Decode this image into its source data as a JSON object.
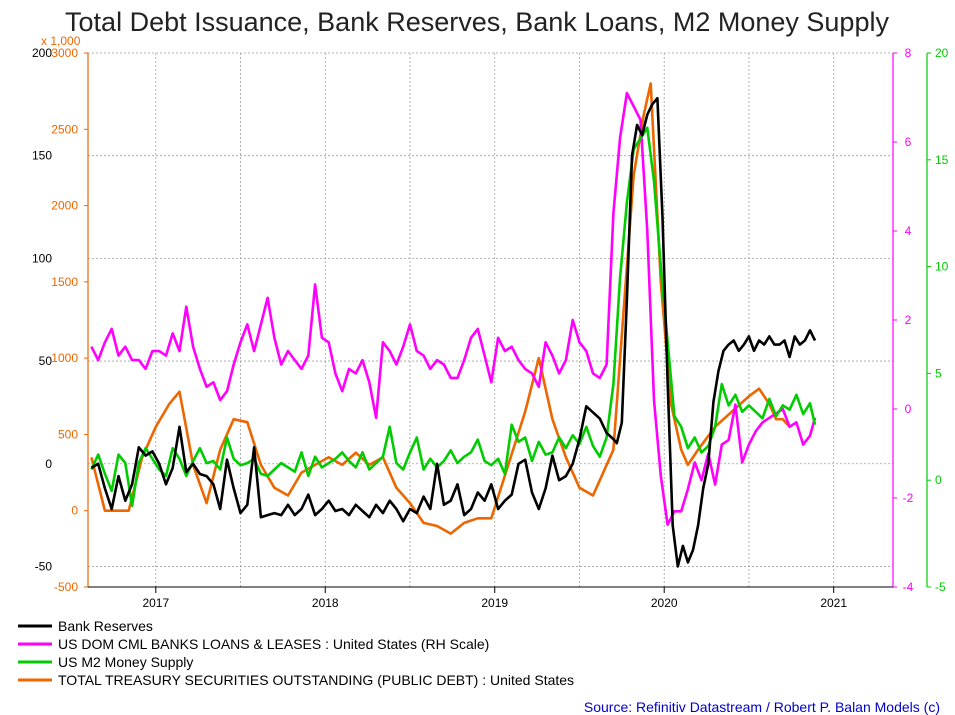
{
  "chart_data": {
    "type": "line",
    "title": "Total Debt Issuance, Bank Reserves, Bank Loans, M2 Money Supply",
    "x_tick_labels": [
      "2017",
      "2018",
      "2019",
      "2020",
      "2021"
    ],
    "x_tick_years": [
      2017,
      2018,
      2019,
      2020,
      2021
    ],
    "xlim": [
      2016.6,
      2021.35
    ],
    "grid": true,
    "axes": {
      "left_black": {
        "ticks": [
          -50,
          0,
          50,
          100,
          150,
          200
        ],
        "ylim": [
          -60,
          200
        ],
        "color": "#000000"
      },
      "left_orange": {
        "multiplier_label": "x 1,000",
        "ticks": [
          -500,
          0,
          500,
          1000,
          1500,
          2000,
          2500,
          3000
        ],
        "ylim": [
          -500,
          3000
        ],
        "color": "#ee6600"
      },
      "right_magenta": {
        "ticks": [
          -4,
          -2,
          0,
          2,
          4,
          6,
          8
        ],
        "ylim": [
          -4,
          8
        ],
        "color": "#ff00ff"
      },
      "right_green": {
        "ticks": [
          -5,
          0,
          5,
          10,
          15,
          20
        ],
        "ylim": [
          -5,
          20
        ],
        "color": "#00cc00"
      }
    },
    "series": [
      {
        "name": "Bank Reserves",
        "axis": "left_black",
        "color": "#000000",
        "x": [
          2016.62,
          2016.66,
          2016.7,
          2016.74,
          2016.78,
          2016.82,
          2016.86,
          2016.9,
          2016.94,
          2016.98,
          2017.02,
          2017.06,
          2017.1,
          2017.14,
          2017.18,
          2017.22,
          2017.26,
          2017.3,
          2017.34,
          2017.38,
          2017.42,
          2017.46,
          2017.5,
          2017.54,
          2017.58,
          2017.62,
          2017.66,
          2017.7,
          2017.74,
          2017.78,
          2017.82,
          2017.86,
          2017.9,
          2017.94,
          2017.98,
          2018.02,
          2018.06,
          2018.1,
          2018.14,
          2018.18,
          2018.22,
          2018.26,
          2018.3,
          2018.34,
          2018.38,
          2018.42,
          2018.46,
          2018.5,
          2018.54,
          2018.58,
          2018.62,
          2018.66,
          2018.7,
          2018.74,
          2018.78,
          2018.82,
          2018.86,
          2018.9,
          2018.94,
          2018.98,
          2019.02,
          2019.06,
          2019.1,
          2019.14,
          2019.18,
          2019.22,
          2019.26,
          2019.3,
          2019.34,
          2019.38,
          2019.42,
          2019.46,
          2019.5,
          2019.54,
          2019.58,
          2019.62,
          2019.66,
          2019.7,
          2019.72,
          2019.75,
          2019.78,
          2019.81,
          2019.84,
          2019.87,
          2019.9,
          2019.93,
          2019.96,
          2019.99,
          2020.02,
          2020.05,
          2020.08,
          2020.11,
          2020.14,
          2020.17,
          2020.2,
          2020.23,
          2020.26,
          2020.29,
          2020.32,
          2020.35,
          2020.38,
          2020.41,
          2020.44,
          2020.47,
          2020.5,
          2020.53,
          2020.56,
          2020.59,
          2020.62,
          2020.65,
          2020.68,
          2020.71,
          2020.74,
          2020.77,
          2020.8,
          2020.83,
          2020.86,
          2020.89
        ],
        "values": [
          -2,
          0,
          -12,
          -22,
          -6,
          -18,
          -10,
          8,
          4,
          6,
          0,
          -10,
          -2,
          18,
          -4,
          0,
          -5,
          -6,
          -10,
          -22,
          2,
          -12,
          -24,
          -20,
          8,
          -26,
          -25,
          -24,
          -25,
          -20,
          -25,
          -22,
          -15,
          -25,
          -22,
          -18,
          -23,
          -22,
          -25,
          -20,
          -23,
          -26,
          -20,
          -24,
          -18,
          -22,
          -28,
          -22,
          -24,
          -16,
          -22,
          0,
          -20,
          -18,
          -10,
          -25,
          -22,
          -14,
          -18,
          -10,
          -22,
          -18,
          -15,
          0,
          2,
          -14,
          -22,
          -12,
          4,
          -8,
          -6,
          0,
          12,
          28,
          25,
          22,
          15,
          12,
          10,
          20,
          80,
          150,
          165,
          160,
          170,
          175,
          178,
          120,
          40,
          -30,
          -50,
          -40,
          -48,
          -42,
          -30,
          -12,
          0,
          30,
          45,
          55,
          58,
          60,
          55,
          58,
          62,
          55,
          60,
          58,
          62,
          58,
          58,
          60,
          52,
          62,
          58,
          60,
          65,
          60
        ],
        "values_note_unused": null
      },
      {
        "name": "US DOM CML BANKS LOANS & LEASES : United States (RH Scale)",
        "axis": "right_magenta",
        "color": "#ff00ff",
        "x": [
          2016.62,
          2016.66,
          2016.7,
          2016.74,
          2016.78,
          2016.82,
          2016.86,
          2016.9,
          2016.94,
          2016.98,
          2017.02,
          2017.06,
          2017.1,
          2017.14,
          2017.18,
          2017.22,
          2017.26,
          2017.3,
          2017.34,
          2017.38,
          2017.42,
          2017.46,
          2017.5,
          2017.54,
          2017.58,
          2017.62,
          2017.66,
          2017.7,
          2017.74,
          2017.78,
          2017.82,
          2017.86,
          2017.9,
          2017.94,
          2017.98,
          2018.02,
          2018.06,
          2018.1,
          2018.14,
          2018.18,
          2018.22,
          2018.26,
          2018.3,
          2018.34,
          2018.38,
          2018.42,
          2018.46,
          2018.5,
          2018.54,
          2018.58,
          2018.62,
          2018.66,
          2018.7,
          2018.74,
          2018.78,
          2018.82,
          2018.86,
          2018.9,
          2018.94,
          2018.98,
          2019.02,
          2019.06,
          2019.1,
          2019.14,
          2019.18,
          2019.22,
          2019.26,
          2019.3,
          2019.34,
          2019.38,
          2019.42,
          2019.46,
          2019.5,
          2019.54,
          2019.58,
          2019.62,
          2019.66,
          2019.7,
          2019.74,
          2019.78,
          2019.82,
          2019.86,
          2019.9,
          2019.94,
          2019.98,
          2020.02,
          2020.06,
          2020.1,
          2020.14,
          2020.18,
          2020.22,
          2020.26,
          2020.3,
          2020.34,
          2020.38,
          2020.42,
          2020.46,
          2020.5,
          2020.54,
          2020.58,
          2020.62,
          2020.66,
          2020.7,
          2020.74,
          2020.78,
          2020.82,
          2020.86,
          2020.89
        ],
        "values": [
          1.4,
          1.1,
          1.5,
          1.8,
          1.2,
          1.4,
          1.1,
          1.1,
          0.9,
          1.3,
          1.3,
          1.2,
          1.7,
          1.3,
          2.3,
          1.4,
          0.9,
          0.5,
          0.6,
          0.2,
          0.4,
          1.0,
          1.5,
          1.9,
          1.3,
          1.9,
          2.5,
          1.6,
          1.0,
          1.3,
          1.1,
          0.9,
          1.2,
          2.8,
          1.6,
          1.5,
          0.8,
          0.4,
          0.9,
          0.8,
          1.1,
          0.6,
          -0.2,
          1.5,
          1.3,
          1.0,
          1.4,
          1.9,
          1.3,
          1.2,
          0.9,
          1.1,
          1.0,
          0.7,
          0.7,
          1.1,
          1.6,
          1.8,
          1.2,
          0.6,
          1.6,
          1.3,
          1.4,
          1.1,
          0.9,
          0.8,
          0.5,
          1.5,
          1.2,
          0.8,
          1.1,
          2.0,
          1.5,
          1.3,
          0.8,
          0.7,
          1.0,
          4.4,
          6.1,
          7.1,
          6.8,
          6.5,
          4.0,
          0.2,
          -1.5,
          -2.6,
          -2.3,
          -2.3,
          -1.8,
          -1.2,
          -1.6,
          -1.0,
          -1.7,
          -0.8,
          -0.7,
          0.1,
          -1.2,
          -0.8,
          -0.5,
          -0.3,
          -0.2,
          -0.1,
          0.0,
          -0.4,
          -0.3,
          -0.8,
          -0.6,
          -0.2
        ],
        "values_note_unused": null
      },
      {
        "name": "US M2 Money Supply",
        "axis": "right_green",
        "color": "#00cc00",
        "x": [
          2016.62,
          2016.66,
          2016.7,
          2016.74,
          2016.78,
          2016.82,
          2016.86,
          2016.9,
          2016.94,
          2016.98,
          2017.02,
          2017.06,
          2017.1,
          2017.14,
          2017.18,
          2017.22,
          2017.26,
          2017.3,
          2017.34,
          2017.38,
          2017.42,
          2017.46,
          2017.5,
          2017.54,
          2017.58,
          2017.62,
          2017.66,
          2017.7,
          2017.74,
          2017.78,
          2017.82,
          2017.86,
          2017.9,
          2017.94,
          2017.98,
          2018.02,
          2018.06,
          2018.1,
          2018.14,
          2018.18,
          2018.22,
          2018.26,
          2018.3,
          2018.34,
          2018.38,
          2018.42,
          2018.46,
          2018.5,
          2018.54,
          2018.58,
          2018.62,
          2018.66,
          2018.7,
          2018.74,
          2018.78,
          2018.82,
          2018.86,
          2018.9,
          2018.94,
          2018.98,
          2019.02,
          2019.06,
          2019.1,
          2019.14,
          2019.18,
          2019.22,
          2019.26,
          2019.3,
          2019.34,
          2019.38,
          2019.42,
          2019.46,
          2019.5,
          2019.54,
          2019.58,
          2019.62,
          2019.66,
          2019.7,
          2019.74,
          2019.78,
          2019.82,
          2019.86,
          2019.9,
          2019.94,
          2019.98,
          2020.02,
          2020.06,
          2020.1,
          2020.14,
          2020.18,
          2020.22,
          2020.26,
          2020.3,
          2020.34,
          2020.38,
          2020.42,
          2020.46,
          2020.5,
          2020.54,
          2020.58,
          2020.62,
          2020.66,
          2020.7,
          2020.74,
          2020.78,
          2020.82,
          2020.86,
          2020.89
        ],
        "values": [
          0.5,
          1.2,
          0.3,
          -0.5,
          1.2,
          0.8,
          -1.2,
          0.8,
          1.5,
          1.0,
          0.5,
          0.2,
          1.5,
          1.0,
          0.2,
          0.9,
          1.5,
          0.8,
          0.9,
          0.5,
          2.0,
          1.0,
          0.7,
          0.8,
          1.0,
          0.3,
          0.2,
          0.5,
          0.8,
          0.6,
          0.4,
          1.3,
          0.2,
          1.1,
          0.6,
          0.8,
          1.0,
          1.3,
          0.9,
          0.6,
          1.3,
          0.5,
          0.8,
          1.1,
          2.5,
          0.8,
          0.5,
          1.3,
          2.0,
          0.5,
          1.0,
          0.6,
          0.9,
          1.4,
          0.8,
          1.1,
          1.3,
          1.9,
          0.9,
          0.7,
          1.0,
          0.3,
          2.6,
          1.8,
          2.0,
          0.9,
          1.8,
          1.2,
          1.3,
          2.0,
          1.5,
          2.1,
          1.7,
          2.5,
          1.6,
          1.1,
          2.0,
          4.5,
          9.5,
          13.0,
          15.5,
          16.0,
          16.5,
          14.0,
          10.0,
          6.5,
          3.0,
          2.5,
          1.5,
          2.0,
          1.3,
          1.6,
          2.5,
          4.5,
          3.5,
          4.0,
          3.2,
          3.5,
          3.2,
          2.9,
          3.8,
          3.0,
          3.5,
          3.3,
          4.0,
          3.1,
          3.6,
          2.6
        ],
        "values_note_unused": null
      },
      {
        "name": "TOTAL TREASURY SECURITIES OUTSTANDING (PUBLIC DEBT) : United States",
        "axis": "left_orange",
        "color": "#ee6600",
        "x": [
          2016.62,
          2016.7,
          2016.76,
          2016.84,
          2016.92,
          2017.0,
          2017.08,
          2017.14,
          2017.22,
          2017.3,
          2017.38,
          2017.46,
          2017.54,
          2017.62,
          2017.7,
          2017.78,
          2017.86,
          2017.94,
          2018.02,
          2018.1,
          2018.18,
          2018.26,
          2018.34,
          2018.42,
          2018.5,
          2018.58,
          2018.66,
          2018.74,
          2018.82,
          2018.9,
          2018.98,
          2019.08,
          2019.18,
          2019.26,
          2019.34,
          2019.42,
          2019.5,
          2019.58,
          2019.64,
          2019.7,
          2019.76,
          2019.82,
          2019.88,
          2019.92,
          2019.98,
          2020.04,
          2020.1,
          2020.14,
          2020.2,
          2020.3,
          2020.4,
          2020.5,
          2020.56,
          2020.62,
          2020.66,
          2020.7,
          2020.74
        ],
        "values": [
          350,
          0,
          0,
          0,
          350,
          550,
          700,
          780,
          300,
          50,
          400,
          600,
          580,
          300,
          150,
          100,
          250,
          300,
          350,
          300,
          380,
          300,
          350,
          150,
          50,
          -80,
          -100,
          -150,
          -80,
          -50,
          -50,
          300,
          650,
          1000,
          600,
          350,
          150,
          100,
          250,
          400,
          1300,
          2200,
          2600,
          2800,
          1500,
          700,
          400,
          300,
          400,
          550,
          650,
          750,
          800,
          700,
          600,
          600,
          550
        ],
        "values_note_unused": null
      }
    ]
  },
  "legend": {
    "entries": [
      {
        "label": "Bank Reserves",
        "color": "#000000"
      },
      {
        "label": "US DOM CML BANKS LOANS & LEASES : United States (RH Scale)",
        "color": "#ff00ff"
      },
      {
        "label": "US M2 Money Supply",
        "color": "#00cc00"
      },
      {
        "label": "TOTAL TREASURY SECURITIES OUTSTANDING (PUBLIC DEBT) : United States",
        "color": "#ee6600"
      }
    ]
  },
  "source_text": "Source: Refinitiv Datastream / Robert P. Balan Models (c)"
}
